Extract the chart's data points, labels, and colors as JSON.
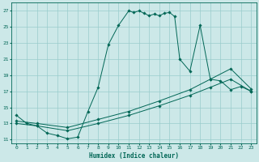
{
  "xlabel": "Humidex (Indice chaleur)",
  "bg_color": "#cce8e8",
  "grid_color": "#99cccc",
  "line_color": "#006655",
  "xlim": [
    -0.5,
    23.5
  ],
  "ylim": [
    10.5,
    28.0
  ],
  "xticks": [
    0,
    1,
    2,
    3,
    4,
    5,
    6,
    7,
    8,
    9,
    10,
    11,
    12,
    13,
    14,
    15,
    16,
    17,
    18,
    19,
    20,
    21,
    22,
    23
  ],
  "yticks": [
    11,
    13,
    15,
    17,
    19,
    21,
    23,
    25,
    27
  ],
  "series_main": {
    "x": [
      0,
      1,
      2,
      3,
      4,
      5,
      6,
      7,
      8,
      9,
      10,
      11,
      11.5,
      12,
      12.5,
      13,
      13.5,
      14,
      14.5,
      15,
      15.5,
      16,
      17,
      18,
      19,
      20,
      21,
      22,
      23
    ],
    "y": [
      14,
      13,
      12.7,
      11.8,
      11.5,
      11.1,
      11.3,
      14.5,
      17.5,
      22.8,
      25.2,
      27.0,
      26.8,
      27.0,
      26.7,
      26.4,
      26.6,
      26.4,
      26.7,
      26.8,
      26.3,
      21.0,
      19.5,
      25.2,
      18.5,
      18.3,
      17.2,
      17.6,
      17.0
    ]
  },
  "series_mid": {
    "x": [
      0,
      2,
      5,
      8,
      11,
      14,
      17,
      19,
      21,
      23
    ],
    "y": [
      13.3,
      13.0,
      12.5,
      13.5,
      14.5,
      15.8,
      17.2,
      18.5,
      19.8,
      17.3
    ]
  },
  "series_low": {
    "x": [
      0,
      2,
      5,
      8,
      11,
      14,
      17,
      19,
      21,
      23
    ],
    "y": [
      13.0,
      12.7,
      12.1,
      13.0,
      14.0,
      15.2,
      16.5,
      17.5,
      18.5,
      17.0
    ]
  }
}
